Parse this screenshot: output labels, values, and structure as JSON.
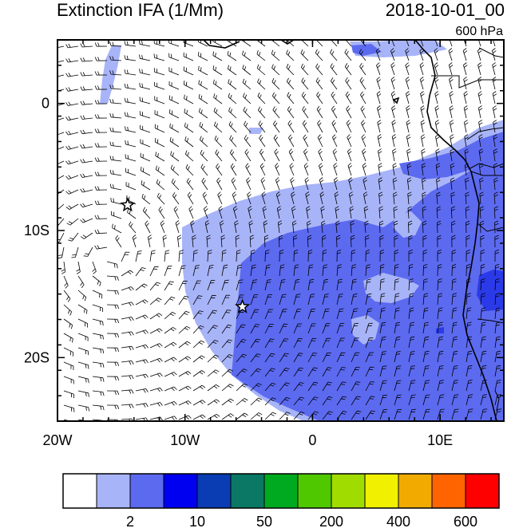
{
  "header": {
    "title": "Extinction IFA (1/Mm)",
    "datetime": "2018-10-01_00",
    "level": "600 hPa"
  },
  "map": {
    "lon_range": [
      -20,
      15
    ],
    "lat_range": [
      -25,
      5
    ],
    "x_ticks": [
      {
        "value": -20,
        "label": "20W"
      },
      {
        "value": -10,
        "label": "10W"
      },
      {
        "value": 0,
        "label": "0"
      },
      {
        "value": 10,
        "label": "10E"
      }
    ],
    "y_ticks": [
      {
        "value": 0,
        "label": "0"
      },
      {
        "value": -10,
        "label": "10S"
      },
      {
        "value": -20,
        "label": "20S"
      }
    ],
    "markers": [
      {
        "type": "star",
        "lon": -14.5,
        "lat": -8
      },
      {
        "type": "star",
        "lon": -5.5,
        "lat": -16
      }
    ],
    "wind_barbs": "dense field, anticyclonic flow centered near 10S 15W",
    "fill_colors": {
      "light": "#a8b4f8",
      "mid": "#5c6af0",
      "dark": "#2b3ae8"
    }
  },
  "colorbar": {
    "colors": [
      "#ffffff",
      "#a8b4f8",
      "#5c6af0",
      "#0000f0",
      "#0a3cb4",
      "#0a7864",
      "#00aa20",
      "#50c800",
      "#a0dc00",
      "#f0f000",
      "#f0aa00",
      "#ff6400",
      "#ff0000"
    ],
    "labels": [
      "2",
      "10",
      "50",
      "200",
      "400",
      "600"
    ],
    "label_positions": [
      2,
      4,
      6,
      8,
      10,
      12
    ]
  }
}
